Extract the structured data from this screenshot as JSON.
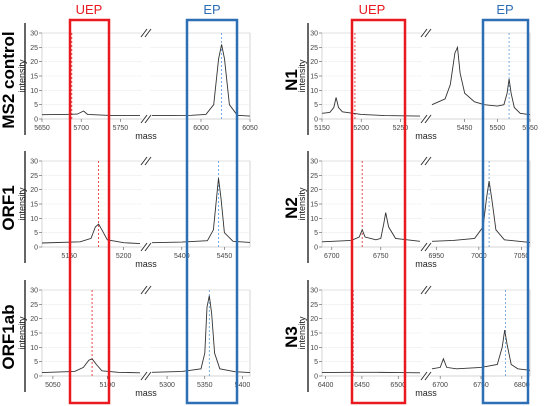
{
  "headers": {
    "uep": "UEP",
    "ep": "EP"
  },
  "colors": {
    "uep": "#e8191f",
    "ep": "#2e6eb5",
    "uep_line": "#e8191f",
    "ep_line": "#5b9bd5",
    "trace": "#333333"
  },
  "chart_data": [
    {
      "id": "ms2",
      "type": "line",
      "row_label": "MS2 control",
      "xlabel": "mass",
      "ylabel": "intensity",
      "ylim": [
        0,
        30
      ],
      "yticks": [
        0,
        5,
        10,
        15,
        20,
        25,
        30
      ],
      "left": {
        "xlim": [
          5650,
          5775
        ],
        "xticks": [
          5650,
          5700,
          5750
        ],
        "points": [
          [
            5650,
            1.5
          ],
          [
            5680,
            1.6
          ],
          [
            5695,
            1.7
          ],
          [
            5703,
            2.8
          ],
          [
            5708,
            1.6
          ],
          [
            5740,
            1.2
          ],
          [
            5775,
            1.2
          ]
        ]
      },
      "right": {
        "xlim": [
          5950,
          6050
        ],
        "xticks": [
          6000,
          6050
        ],
        "points": [
          [
            5950,
            1.2
          ],
          [
            5990,
            1.3
          ],
          [
            6005,
            1.6
          ],
          [
            6013,
            5
          ],
          [
            6018,
            21
          ],
          [
            6021,
            26
          ],
          [
            6024,
            21
          ],
          [
            6029,
            5
          ],
          [
            6037,
            1.3
          ],
          [
            6050,
            1.0
          ]
        ]
      },
      "uep_x": 5688,
      "ep_x": 6021
    },
    {
      "id": "n1",
      "type": "line",
      "row_label": "N1",
      "xlabel": "mass",
      "ylabel": "intensity",
      "ylim": [
        0,
        30
      ],
      "yticks": [
        0,
        5,
        10,
        15,
        20,
        25,
        30
      ],
      "left": {
        "xlim": [
          5150,
          5275
        ],
        "xticks": [
          5150,
          5200,
          5250
        ],
        "points": [
          [
            5150,
            2.0
          ],
          [
            5160,
            2.3
          ],
          [
            5165,
            4
          ],
          [
            5168,
            7.5
          ],
          [
            5171,
            4
          ],
          [
            5176,
            2.5
          ],
          [
            5200,
            1.6
          ],
          [
            5230,
            1.2
          ],
          [
            5275,
            1.0
          ]
        ]
      },
      "right": {
        "xlim": [
          5400,
          5550
        ],
        "xticks": [
          5450,
          5500,
          5550
        ],
        "points": [
          [
            5400,
            5
          ],
          [
            5410,
            6
          ],
          [
            5420,
            7
          ],
          [
            5428,
            12
          ],
          [
            5435,
            23
          ],
          [
            5439,
            25
          ],
          [
            5443,
            16
          ],
          [
            5450,
            9
          ],
          [
            5465,
            6
          ],
          [
            5480,
            5
          ],
          [
            5500,
            4.5
          ],
          [
            5510,
            5
          ],
          [
            5515,
            9
          ],
          [
            5518,
            14
          ],
          [
            5521,
            9
          ],
          [
            5526,
            4
          ],
          [
            5535,
            2
          ],
          [
            5550,
            1.5
          ]
        ]
      },
      "uep_x": 5192,
      "ep_x": 5518
    },
    {
      "id": "orf1",
      "type": "line",
      "row_label": "ORF1",
      "xlabel": "mass",
      "ylabel": "intensity",
      "ylim": [
        0,
        30
      ],
      "yticks": [
        0,
        5,
        10,
        15,
        20,
        25,
        30
      ],
      "left": {
        "xlim": [
          5125,
          5215
        ],
        "xticks": [
          5150,
          5200
        ],
        "points": [
          [
            5125,
            1.4
          ],
          [
            5160,
            1.8
          ],
          [
            5170,
            3
          ],
          [
            5174,
            7
          ],
          [
            5177,
            8
          ],
          [
            5180,
            6
          ],
          [
            5185,
            2.5
          ],
          [
            5200,
            1.5
          ],
          [
            5215,
            1.2
          ]
        ]
      },
      "right": {
        "xlim": [
          5365,
          5480
        ],
        "xticks": [
          5400,
          5450
        ],
        "points": [
          [
            5365,
            1.5
          ],
          [
            5400,
            1.7
          ],
          [
            5430,
            2.2
          ],
          [
            5437,
            6
          ],
          [
            5441,
            18
          ],
          [
            5443,
            24
          ],
          [
            5446,
            17
          ],
          [
            5450,
            5
          ],
          [
            5460,
            2.0
          ],
          [
            5480,
            1.6
          ]
        ]
      },
      "uep_x": 5177,
      "ep_x": 5443
    },
    {
      "id": "n2",
      "type": "line",
      "row_label": "N2",
      "xlabel": "mass",
      "ylabel": "intensity",
      "ylim": [
        0,
        30
      ],
      "yticks": [
        0,
        5,
        10,
        15,
        20,
        25,
        30
      ],
      "left": {
        "xlim": [
          6690,
          6790
        ],
        "xticks": [
          6700,
          6750
        ],
        "points": [
          [
            6690,
            1.8
          ],
          [
            6720,
            2.3
          ],
          [
            6728,
            3.5
          ],
          [
            6731,
            6
          ],
          [
            6734,
            3.5
          ],
          [
            6745,
            2.5
          ],
          [
            6750,
            3
          ],
          [
            6753,
            8
          ],
          [
            6755,
            12
          ],
          [
            6758,
            7
          ],
          [
            6765,
            3
          ],
          [
            6790,
            2
          ]
        ]
      },
      "right": {
        "xlim": [
          6945,
          7060
        ],
        "xticks": [
          6950,
          7000,
          7050
        ],
        "points": [
          [
            6945,
            2
          ],
          [
            6970,
            2.3
          ],
          [
            6995,
            3
          ],
          [
            7005,
            7
          ],
          [
            7009,
            17
          ],
          [
            7012,
            23
          ],
          [
            7015,
            17
          ],
          [
            7020,
            6
          ],
          [
            7030,
            2.5
          ],
          [
            7060,
            1.6
          ]
        ]
      },
      "uep_x": 6731,
      "ep_x": 7012
    },
    {
      "id": "orf1ab",
      "type": "line",
      "row_label": "ORF1ab",
      "xlabel": "mass",
      "ylabel": "intensity",
      "ylim": [
        0,
        30
      ],
      "yticks": [
        0,
        5,
        10,
        15,
        20,
        25,
        30
      ],
      "left": {
        "xlim": [
          5040,
          5130
        ],
        "xticks": [
          5050,
          5100
        ],
        "points": [
          [
            5040,
            1.2
          ],
          [
            5070,
            1.6
          ],
          [
            5078,
            3
          ],
          [
            5083,
            5.5
          ],
          [
            5086,
            6
          ],
          [
            5090,
            4
          ],
          [
            5095,
            1.8
          ],
          [
            5110,
            1.3
          ],
          [
            5130,
            1.1
          ]
        ]
      },
      "right": {
        "xlim": [
          5280,
          5410
        ],
        "xticks": [
          5300,
          5350,
          5400
        ],
        "points": [
          [
            5280,
            1.3
          ],
          [
            5320,
            1.6
          ],
          [
            5345,
            2.5
          ],
          [
            5350,
            8
          ],
          [
            5353,
            24
          ],
          [
            5356,
            28
          ],
          [
            5359,
            22
          ],
          [
            5363,
            8
          ],
          [
            5370,
            2.5
          ],
          [
            5390,
            1.5
          ],
          [
            5410,
            1.2
          ]
        ]
      },
      "uep_x": 5086,
      "ep_x": 5356
    },
    {
      "id": "n3",
      "type": "line",
      "row_label": "N3",
      "xlabel": "mass",
      "ylabel": "intensity",
      "ylim": [
        0,
        30
      ],
      "yticks": [
        0,
        5,
        10,
        15,
        20,
        25,
        30
      ],
      "left": {
        "xlim": [
          6395,
          6530
        ],
        "xticks": [
          6400,
          6450,
          6500
        ],
        "points": [
          [
            6395,
            1.2
          ],
          [
            6430,
            1.3
          ],
          [
            6470,
            1.3
          ],
          [
            6500,
            1.2
          ],
          [
            6530,
            1.1
          ]
        ]
      },
      "right": {
        "xlim": [
          6690,
          6810
        ],
        "xticks": [
          6700,
          6750,
          6800
        ],
        "points": [
          [
            6690,
            2.5
          ],
          [
            6700,
            3
          ],
          [
            6704,
            6
          ],
          [
            6708,
            3
          ],
          [
            6720,
            2.5
          ],
          [
            6750,
            3
          ],
          [
            6770,
            4
          ],
          [
            6776,
            10
          ],
          [
            6779,
            16
          ],
          [
            6782,
            11
          ],
          [
            6787,
            4
          ],
          [
            6795,
            2.5
          ],
          [
            6810,
            2
          ]
        ]
      },
      "uep_x": 6438,
      "ep_x": 6780
    }
  ]
}
